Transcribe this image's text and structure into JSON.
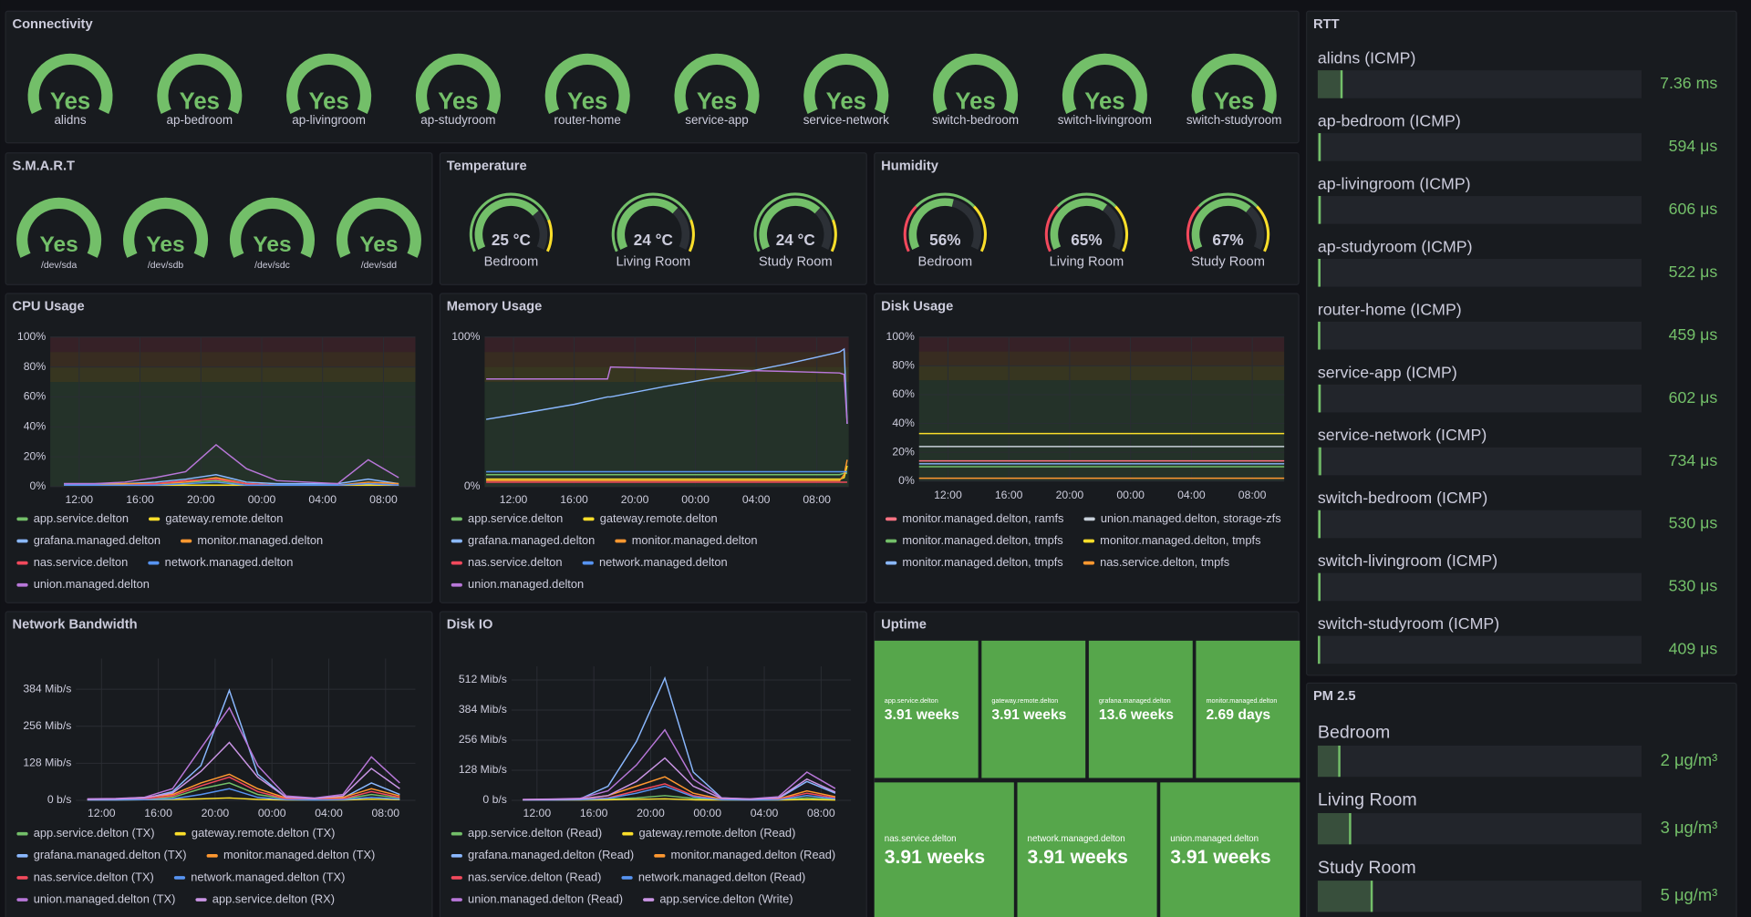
{
  "connectivity": {
    "title": "Connectivity",
    "color": "#73bf69",
    "items": [
      {
        "name": "alidns",
        "status": "Yes"
      },
      {
        "name": "ap-bedroom",
        "status": "Yes"
      },
      {
        "name": "ap-livingroom",
        "status": "Yes"
      },
      {
        "name": "ap-studyroom",
        "status": "Yes"
      },
      {
        "name": "router-home",
        "status": "Yes"
      },
      {
        "name": "service-app",
        "status": "Yes"
      },
      {
        "name": "service-network",
        "status": "Yes"
      },
      {
        "name": "switch-bedroom",
        "status": "Yes"
      },
      {
        "name": "switch-livingroom",
        "status": "Yes"
      },
      {
        "name": "switch-studyroom",
        "status": "Yes"
      }
    ]
  },
  "smart": {
    "title": "S.M.A.R.T",
    "color": "#73bf69",
    "items": [
      {
        "name": "/dev/sda",
        "status": "Yes"
      },
      {
        "name": "/dev/sdb",
        "status": "Yes"
      },
      {
        "name": "/dev/sdc",
        "status": "Yes"
      },
      {
        "name": "/dev/sdd",
        "status": "Yes"
      }
    ]
  },
  "temperature": {
    "title": "Temperature",
    "range": [
      0,
      35
    ],
    "thresholds": [
      {
        "value": 0,
        "color": "#73bf69"
      },
      {
        "value": 28,
        "color": "#fade2a"
      }
    ],
    "items": [
      {
        "name": "Bedroom",
        "value": 25,
        "value_label": "25 °C"
      },
      {
        "name": "Living Room",
        "value": 24,
        "value_label": "24 °C"
      },
      {
        "name": "Study Room",
        "value": 24,
        "value_label": "24 °C"
      }
    ]
  },
  "humidity": {
    "title": "Humidity",
    "range": [
      0,
      100
    ],
    "thresholds": [
      {
        "value": 0,
        "color": "#f2495c"
      },
      {
        "value": 30,
        "color": "#73bf69"
      },
      {
        "value": 70,
        "color": "#fade2a"
      }
    ],
    "items": [
      {
        "name": "Bedroom",
        "value": 56,
        "value_label": "56%"
      },
      {
        "name": "Living Room",
        "value": 65,
        "value_label": "65%"
      },
      {
        "name": "Study Room",
        "value": 67,
        "value_label": "67%"
      }
    ]
  },
  "rtt": {
    "title": "RTT",
    "range": [
      0,
      100000
    ],
    "color": "#73bf69",
    "items": [
      {
        "name": "alidns (ICMP)",
        "value": 7360,
        "value_label": "7.36 ms"
      },
      {
        "name": "ap-bedroom (ICMP)",
        "value": 594,
        "value_label": "594 μs"
      },
      {
        "name": "ap-livingroom (ICMP)",
        "value": 606,
        "value_label": "606 μs"
      },
      {
        "name": "ap-studyroom (ICMP)",
        "value": 522,
        "value_label": "522 μs"
      },
      {
        "name": "router-home (ICMP)",
        "value": 459,
        "value_label": "459 μs"
      },
      {
        "name": "service-app (ICMP)",
        "value": 602,
        "value_label": "602 μs"
      },
      {
        "name": "service-network (ICMP)",
        "value": 734,
        "value_label": "734 μs"
      },
      {
        "name": "switch-bedroom (ICMP)",
        "value": 530,
        "value_label": "530 μs"
      },
      {
        "name": "switch-livingroom (ICMP)",
        "value": 530,
        "value_label": "530 μs"
      },
      {
        "name": "switch-studyroom (ICMP)",
        "value": 409,
        "value_label": "409 μs"
      }
    ]
  },
  "pm25": {
    "title": "PM 2.5",
    "range": [
      0,
      30
    ],
    "color": "#73bf69",
    "items": [
      {
        "name": "Bedroom",
        "value": 2,
        "value_label": "2 μg/m³"
      },
      {
        "name": "Living Room",
        "value": 3,
        "value_label": "3 μg/m³"
      },
      {
        "name": "Study Room",
        "value": 5,
        "value_label": "5 μg/m³"
      }
    ]
  },
  "cpu": {
    "title": "CPU Usage",
    "type": "line",
    "x": [
      11,
      13,
      15,
      17,
      19,
      21,
      23,
      25,
      27,
      29,
      31,
      33
    ],
    "xlim": [
      10.1,
      34.1
    ],
    "xticks": [
      {
        "value": 12,
        "label": "12:00"
      },
      {
        "value": 16,
        "label": "16:00"
      },
      {
        "value": 20,
        "label": "20:00"
      },
      {
        "value": 24,
        "label": "00:00"
      },
      {
        "value": 28,
        "label": "04:00"
      },
      {
        "value": 32,
        "label": "08:00"
      }
    ],
    "ylim": [
      0,
      100
    ],
    "yticks": [
      {
        "value": 0,
        "label": "0%"
      },
      {
        "value": 20,
        "label": "20%"
      },
      {
        "value": 40,
        "label": "40%"
      },
      {
        "value": 60,
        "label": "60%"
      },
      {
        "value": 80,
        "label": "80%"
      },
      {
        "value": 100,
        "label": "100%"
      }
    ],
    "thresholds": [
      {
        "value": 0,
        "color": "#73bf69"
      },
      {
        "value": 70,
        "color": "#fade2a"
      },
      {
        "value": 80,
        "color": "#ff9830"
      },
      {
        "value": 90,
        "color": "#f2495c"
      }
    ],
    "series": [
      {
        "name": "app.service.delton",
        "color": "#73bf69",
        "values": [
          1,
          1,
          1,
          2,
          3,
          4,
          2,
          1,
          1,
          1,
          2,
          1
        ]
      },
      {
        "name": "gateway.remote.delton",
        "color": "#fade2a",
        "values": [
          1,
          1,
          1,
          1,
          1,
          1,
          1,
          1,
          1,
          1,
          1,
          1
        ]
      },
      {
        "name": "grafana.managed.delton",
        "color": "#8ab8ff",
        "values": [
          2,
          2,
          2,
          3,
          5,
          8,
          3,
          2,
          2,
          2,
          5,
          2
        ]
      },
      {
        "name": "monitor.managed.delton",
        "color": "#ff9830",
        "values": [
          1,
          1,
          2,
          2,
          3,
          6,
          2,
          1,
          1,
          1,
          3,
          2
        ]
      },
      {
        "name": "nas.service.delton",
        "color": "#f2495c",
        "values": [
          1,
          1,
          1,
          2,
          4,
          5,
          2,
          1,
          1,
          1,
          2,
          1
        ]
      },
      {
        "name": "network.managed.delton",
        "color": "#5794f2",
        "values": [
          1,
          1,
          1,
          1,
          2,
          3,
          1,
          1,
          1,
          1,
          2,
          1
        ]
      },
      {
        "name": "union.managed.delton",
        "color": "#b877d9",
        "values": [
          2,
          2,
          3,
          6,
          10,
          28,
          12,
          4,
          3,
          2,
          18,
          6
        ]
      }
    ]
  },
  "memory": {
    "title": "Memory Usage",
    "type": "line",
    "x": [
      10.2,
      12,
      16,
      18.2,
      18.4,
      22,
      26,
      30,
      33.5,
      33.8,
      34
    ],
    "xlim": [
      10.1,
      34.1
    ],
    "xticks": [
      {
        "value": 12,
        "label": "12:00"
      },
      {
        "value": 16,
        "label": "16:00"
      },
      {
        "value": 20,
        "label": "20:00"
      },
      {
        "value": 24,
        "label": "00:00"
      },
      {
        "value": 28,
        "label": "04:00"
      },
      {
        "value": 32,
        "label": "08:00"
      }
    ],
    "ylim": [
      0,
      100
    ],
    "yticks": [
      {
        "value": 0,
        "label": "0%"
      },
      {
        "value": 100,
        "label": "100%"
      }
    ],
    "thresholds": [
      {
        "value": 0,
        "color": "#73bf69"
      },
      {
        "value": 70,
        "color": "#fade2a"
      },
      {
        "value": 80,
        "color": "#ff9830"
      },
      {
        "value": 90,
        "color": "#f2495c"
      }
    ],
    "series": [
      {
        "name": "app.service.delton",
        "color": "#73bf69",
        "values": [
          8,
          8,
          8,
          8,
          8,
          8,
          8,
          8,
          8,
          9,
          9
        ]
      },
      {
        "name": "gateway.remote.delton",
        "color": "#fade2a",
        "values": [
          5,
          5,
          5,
          5,
          5,
          5,
          5,
          5,
          5,
          6,
          14
        ]
      },
      {
        "name": "grafana.managed.delton",
        "color": "#8ab8ff",
        "values": [
          45,
          48,
          55,
          60,
          60,
          67,
          74,
          82,
          90,
          92,
          42
        ]
      },
      {
        "name": "monitor.managed.delton",
        "color": "#ff9830",
        "values": [
          4,
          4,
          4,
          4,
          4,
          4,
          4,
          4,
          4,
          8,
          18
        ]
      },
      {
        "name": "nas.service.delton",
        "color": "#f2495c",
        "values": [
          3,
          3,
          3,
          3,
          3,
          3,
          3,
          3,
          3,
          3,
          3
        ]
      },
      {
        "name": "network.managed.delton",
        "color": "#5794f2",
        "values": [
          10,
          10,
          10,
          10,
          10,
          10,
          10,
          10,
          10,
          10,
          10
        ]
      },
      {
        "name": "union.managed.delton",
        "color": "#b877d9",
        "values": [
          72,
          72,
          72,
          72,
          80,
          79,
          78,
          77,
          76,
          75,
          42
        ]
      }
    ]
  },
  "disk": {
    "title": "Disk Usage",
    "type": "line",
    "x": [
      10.1,
      34.1
    ],
    "xlim": [
      10.1,
      34.1
    ],
    "xticks": [
      {
        "value": 12,
        "label": "12:00"
      },
      {
        "value": 16,
        "label": "16:00"
      },
      {
        "value": 20,
        "label": "20:00"
      },
      {
        "value": 24,
        "label": "00:00"
      },
      {
        "value": 28,
        "label": "04:00"
      },
      {
        "value": 32,
        "label": "08:00"
      }
    ],
    "ylim": [
      0,
      100
    ],
    "yticks": [
      {
        "value": 0,
        "label": "0%"
      },
      {
        "value": 20,
        "label": "20%"
      },
      {
        "value": 40,
        "label": "40%"
      },
      {
        "value": 60,
        "label": "60%"
      },
      {
        "value": 80,
        "label": "80%"
      },
      {
        "value": 100,
        "label": "100%"
      }
    ],
    "thresholds": [
      {
        "value": 0,
        "color": "#73bf69"
      },
      {
        "value": 70,
        "color": "#fade2a"
      },
      {
        "value": 80,
        "color": "#ff9830"
      },
      {
        "value": 90,
        "color": "#f2495c"
      }
    ],
    "series": [
      {
        "name": "monitor.managed.delton, ramfs",
        "color": "#ff7383",
        "values": [
          14,
          14
        ]
      },
      {
        "name": "union.managed.delton, storage-zfs",
        "color": "#c7d0d9",
        "values": [
          24,
          24
        ]
      },
      {
        "name": "monitor.managed.delton, tmpfs",
        "color": "#73bf69",
        "values": [
          10,
          10
        ]
      },
      {
        "name": "monitor.managed.delton, tmpfs",
        "color": "#fade2a",
        "values": [
          33,
          33
        ]
      },
      {
        "name": "monitor.managed.delton, tmpfs",
        "color": "#8ab8ff",
        "values": [
          12,
          12
        ]
      },
      {
        "name": "nas.service.delton, tmpfs",
        "color": "#ff9830",
        "values": [
          2,
          2
        ]
      }
    ]
  },
  "network": {
    "title": "Network Bandwidth",
    "type": "line",
    "x": [
      11,
      13,
      15,
      17,
      19,
      21,
      23,
      25,
      27,
      29,
      31,
      33
    ],
    "xlim": [
      10.2,
      34.1
    ],
    "xticks": [
      {
        "value": 12,
        "label": "12:00"
      },
      {
        "value": 16,
        "label": "16:00"
      },
      {
        "value": 20,
        "label": "20:00"
      },
      {
        "value": 24,
        "label": "00:00"
      },
      {
        "value": 28,
        "label": "04:00"
      },
      {
        "value": 32,
        "label": "08:00"
      }
    ],
    "ylim": [
      0,
      490
    ],
    "yticks": [
      {
        "value": 0,
        "label": "0 b/s"
      },
      {
        "value": 128,
        "label": "128 Mib/s"
      },
      {
        "value": 256,
        "label": "256 Mib/s"
      },
      {
        "value": 384,
        "label": "384 Mib/s"
      }
    ],
    "series": [
      {
        "name": "app.service.delton (TX)",
        "color": "#73bf69",
        "values": [
          2,
          3,
          4,
          10,
          40,
          60,
          20,
          5,
          3,
          4,
          20,
          8
        ]
      },
      {
        "name": "gateway.remote.delton (TX)",
        "color": "#fade2a",
        "values": [
          1,
          1,
          2,
          3,
          5,
          8,
          3,
          1,
          1,
          1,
          4,
          2
        ]
      },
      {
        "name": "grafana.managed.delton (TX)",
        "color": "#8ab8ff",
        "values": [
          3,
          4,
          6,
          30,
          120,
          380,
          90,
          10,
          5,
          8,
          60,
          20
        ]
      },
      {
        "name": "monitor.managed.delton (TX)",
        "color": "#ff9830",
        "values": [
          4,
          5,
          10,
          20,
          60,
          90,
          40,
          8,
          6,
          10,
          40,
          15
        ]
      },
      {
        "name": "nas.service.delton (TX)",
        "color": "#f2495c",
        "values": [
          2,
          3,
          5,
          15,
          50,
          80,
          30,
          5,
          3,
          5,
          30,
          10
        ]
      },
      {
        "name": "network.managed.delton (TX)",
        "color": "#5794f2",
        "values": [
          1,
          1,
          2,
          5,
          20,
          40,
          10,
          2,
          1,
          2,
          10,
          4
        ]
      },
      {
        "name": "union.managed.delton (TX)",
        "color": "#b877d9",
        "values": [
          5,
          6,
          10,
          40,
          180,
          320,
          120,
          15,
          8,
          20,
          150,
          60
        ]
      },
      {
        "name": "app.service.delton (RX)",
        "color": "#ca95e5",
        "values": [
          3,
          4,
          8,
          25,
          100,
          200,
          80,
          10,
          6,
          15,
          110,
          40
        ]
      }
    ]
  },
  "diskio": {
    "title": "Disk IO",
    "type": "line",
    "x": [
      11,
      13,
      15,
      17,
      19,
      21,
      23,
      25,
      27,
      29,
      31,
      33
    ],
    "xlim": [
      10.2,
      34.1
    ],
    "xticks": [
      {
        "value": 12,
        "label": "12:00"
      },
      {
        "value": 16,
        "label": "16:00"
      },
      {
        "value": 20,
        "label": "20:00"
      },
      {
        "value": 24,
        "label": "00:00"
      },
      {
        "value": 28,
        "label": "04:00"
      },
      {
        "value": 32,
        "label": "08:00"
      }
    ],
    "ylim": [
      0,
      570
    ],
    "yticks": [
      {
        "value": 0,
        "label": "0 b/s"
      },
      {
        "value": 128,
        "label": "128 Mib/s"
      },
      {
        "value": 256,
        "label": "256 Mib/s"
      },
      {
        "value": 384,
        "label": "384 Mib/s"
      },
      {
        "value": 512,
        "label": "512 Mib/s"
      }
    ],
    "series": [
      {
        "name": "app.service.delton (Read)",
        "color": "#73bf69",
        "values": [
          1,
          1,
          2,
          5,
          10,
          20,
          8,
          2,
          1,
          2,
          10,
          4
        ]
      },
      {
        "name": "gateway.remote.delton (Read)",
        "color": "#fade2a",
        "values": [
          1,
          1,
          1,
          2,
          4,
          6,
          2,
          1,
          1,
          1,
          3,
          1
        ]
      },
      {
        "name": "grafana.managed.delton (Read)",
        "color": "#8ab8ff",
        "values": [
          2,
          3,
          5,
          60,
          250,
          520,
          120,
          10,
          5,
          8,
          80,
          30
        ]
      },
      {
        "name": "monitor.managed.delton (Read)",
        "color": "#ff9830",
        "values": [
          3,
          4,
          6,
          20,
          60,
          100,
          30,
          5,
          4,
          6,
          40,
          15
        ]
      },
      {
        "name": "nas.service.delton (Read)",
        "color": "#f2495c",
        "values": [
          2,
          2,
          4,
          10,
          40,
          70,
          20,
          3,
          2,
          4,
          30,
          10
        ]
      },
      {
        "name": "network.managed.delton (Read)",
        "color": "#5794f2",
        "values": [
          1,
          1,
          2,
          8,
          30,
          60,
          15,
          2,
          1,
          2,
          20,
          6
        ]
      },
      {
        "name": "union.managed.delton (Read)",
        "color": "#b877d9",
        "values": [
          4,
          5,
          8,
          40,
          150,
          300,
          90,
          10,
          6,
          15,
          120,
          50
        ]
      },
      {
        "name": "app.service.delton (Write)",
        "color": "#ca95e5",
        "values": [
          2,
          3,
          5,
          20,
          80,
          180,
          60,
          8,
          4,
          10,
          90,
          35
        ]
      }
    ]
  },
  "uptime": {
    "title": "Uptime",
    "color": "#56a64b",
    "tiles": [
      {
        "name": "app.service.delton",
        "value": "3.91 weeks"
      },
      {
        "name": "gateway.remote.delton",
        "value": "3.91 weeks"
      },
      {
        "name": "grafana.managed.delton",
        "value": "13.6 weeks"
      },
      {
        "name": "monitor.managed.delton",
        "value": "2.69 days"
      },
      {
        "name": "nas.service.delton",
        "value": "3.91 weeks"
      },
      {
        "name": "network.managed.delton",
        "value": "3.91 weeks"
      },
      {
        "name": "union.managed.delton",
        "value": "3.91 weeks"
      }
    ]
  }
}
